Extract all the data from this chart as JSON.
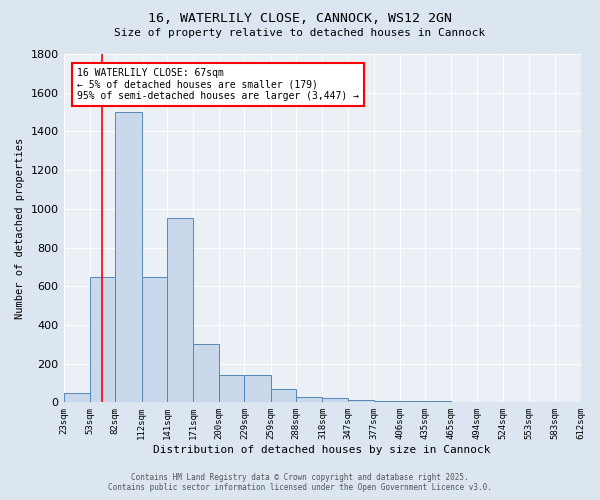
{
  "title1": "16, WATERLILY CLOSE, CANNOCK, WS12 2GN",
  "title2": "Size of property relative to detached houses in Cannock",
  "xlabel": "Distribution of detached houses by size in Cannock",
  "ylabel": "Number of detached properties",
  "bar_edges": [
    23,
    53,
    82,
    112,
    141,
    171,
    200,
    229,
    259,
    288,
    318,
    347,
    377,
    406,
    435,
    465,
    494,
    524,
    553,
    583,
    612
  ],
  "bar_heights": [
    50,
    650,
    1500,
    650,
    950,
    300,
    140,
    140,
    70,
    30,
    20,
    10,
    5,
    5,
    5,
    3,
    3,
    2,
    2,
    2,
    0
  ],
  "bar_color": "#c9d9eb",
  "bar_edge_color": "#5588bb",
  "red_line_x": 67,
  "annotation_text": "16 WATERLILY CLOSE: 67sqm\n← 5% of detached houses are smaller (179)\n95% of semi-detached houses are larger (3,447) →",
  "annotation_box_color": "white",
  "annotation_border_color": "red",
  "ylim": [
    0,
    1800
  ],
  "yticks": [
    0,
    200,
    400,
    600,
    800,
    1000,
    1200,
    1400,
    1600,
    1800
  ],
  "background_color": "#dce6f0",
  "plot_background": "#eaf0f6",
  "grid_color": "#ffffff",
  "footer1": "Contains HM Land Registry data © Crown copyright and database right 2025.",
  "footer2": "Contains public sector information licensed under the Open Government Licence v3.0.",
  "xtick_labels": [
    "23sqm",
    "53sqm",
    "82sqm",
    "112sqm",
    "141sqm",
    "171sqm",
    "200sqm",
    "229sqm",
    "259sqm",
    "288sqm",
    "318sqm",
    "347sqm",
    "377sqm",
    "406sqm",
    "435sqm",
    "465sqm",
    "494sqm",
    "524sqm",
    "553sqm",
    "583sqm",
    "612sqm"
  ]
}
